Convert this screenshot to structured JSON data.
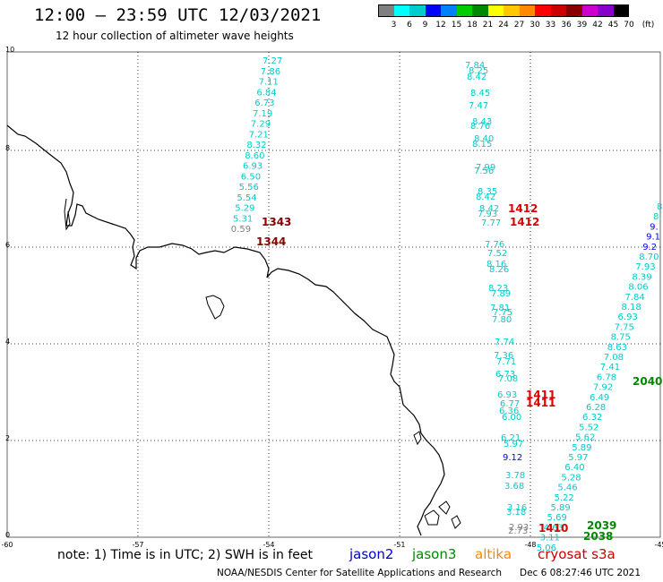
{
  "header": {
    "title": "12:00 — 23:59 UTC 12/03/2021",
    "subtitle": "12 hour collection of altimeter wave heights"
  },
  "colorbar": {
    "colors": [
      "#808080",
      "#00ffff",
      "#00cccc",
      "#0000ff",
      "#007fff",
      "#00cc00",
      "#008800",
      "#ffff00",
      "#ffc800",
      "#ff8800",
      "#ff0000",
      "#cc0000",
      "#880000",
      "#cc00cc",
      "#8800cc",
      "#000000"
    ],
    "ticks": [
      "3",
      "6",
      "9",
      "12",
      "15",
      "18",
      "21",
      "24",
      "27",
      "30",
      "33",
      "36",
      "39",
      "42",
      "45",
      "70",
      "(ft)"
    ]
  },
  "axes": {
    "x_ticks": [
      "-60",
      "-57",
      "-54",
      "-51",
      "-48",
      "-45"
    ],
    "y_ticks": [
      "0",
      "2",
      "4",
      "6",
      "8",
      "10"
    ]
  },
  "swath_labels": {
    "jason2_row": [
      {
        "text": "1343",
        "color": "#880000"
      },
      {
        "text": "1344",
        "color": "#880000"
      }
    ],
    "cryosat_top": [
      {
        "text": "1412",
        "color": "#dd0000"
      },
      {
        "text": "1412",
        "color": "#dd0000"
      }
    ],
    "cryosat_mid": [
      {
        "text": "1411",
        "color": "#dd0000"
      },
      {
        "text": "1411",
        "color": "#dd0000"
      }
    ],
    "cryosat_bottom": [
      {
        "text": "1410",
        "color": "#dd0000"
      }
    ],
    "jason3": [
      {
        "text": "2040",
        "color": "#008800"
      },
      {
        "text": "2039",
        "color": "#008800"
      },
      {
        "text": "2038",
        "color": "#008800"
      }
    ]
  },
  "track_left": [
    {
      "v": "7.27",
      "c": "#00cccc"
    },
    {
      "v": "7.86",
      "c": "#00cccc"
    },
    {
      "v": "7.11",
      "c": "#00cccc"
    },
    {
      "v": "6.84",
      "c": "#00cccc"
    },
    {
      "v": "6.73",
      "c": "#00cccc"
    },
    {
      "v": "7.19",
      "c": "#00cccc"
    },
    {
      "v": "7.29",
      "c": "#00cccc"
    },
    {
      "v": "7.21",
      "c": "#00cccc"
    },
    {
      "v": "8.32",
      "c": "#00cccc"
    },
    {
      "v": "8.60",
      "c": "#00cccc"
    },
    {
      "v": "6.93",
      "c": "#00cccc"
    },
    {
      "v": "6.50",
      "c": "#00cccc"
    },
    {
      "v": "5.56",
      "c": "#00cccc"
    },
    {
      "v": "5.54",
      "c": "#00cccc"
    },
    {
      "v": "5.29",
      "c": "#00cccc"
    },
    {
      "v": "5.31",
      "c": "#00cccc"
    },
    {
      "v": "0.59",
      "c": "#808080"
    }
  ],
  "track_mid_top": [
    {
      "v": "7.84",
      "c": "#00cccc"
    },
    {
      "v": "8.25",
      "c": "#00cccc"
    },
    {
      "v": "8.42",
      "c": "#00cccc"
    },
    {
      "v": "8.45",
      "c": "#00cccc"
    },
    {
      "v": "7.47",
      "c": "#00cccc"
    },
    {
      "v": "8.43",
      "c": "#00cccc"
    },
    {
      "v": "8.76",
      "c": "#00cccc"
    },
    {
      "v": "8.40",
      "c": "#00cccc"
    },
    {
      "v": "8.15",
      "c": "#00cccc"
    },
    {
      "v": "7.99",
      "c": "#00cccc"
    },
    {
      "v": "7.56",
      "c": "#00cccc"
    },
    {
      "v": "8.35",
      "c": "#00cccc"
    },
    {
      "v": "8.42",
      "c": "#00cccc"
    },
    {
      "v": "8.42",
      "c": "#00cccc"
    },
    {
      "v": "7.93",
      "c": "#00cccc"
    },
    {
      "v": "7.77",
      "c": "#00cccc"
    }
  ],
  "track_mid_low": [
    {
      "v": "7.76",
      "c": "#00cccc"
    },
    {
      "v": "7.52",
      "c": "#00cccc"
    },
    {
      "v": "8.16",
      "c": "#00cccc"
    },
    {
      "v": "8.26",
      "c": "#00cccc"
    },
    {
      "v": "8.23",
      "c": "#00cccc"
    },
    {
      "v": "7.89",
      "c": "#00cccc"
    },
    {
      "v": "7.81",
      "c": "#00cccc"
    },
    {
      "v": "7.75",
      "c": "#00cccc"
    },
    {
      "v": "7.80",
      "c": "#00cccc"
    },
    {
      "v": "7.74",
      "c": "#00cccc"
    },
    {
      "v": "7.36",
      "c": "#00cccc"
    },
    {
      "v": "7.71",
      "c": "#00cccc"
    },
    {
      "v": "6.73",
      "c": "#00cccc"
    },
    {
      "v": "7.08",
      "c": "#00cccc"
    },
    {
      "v": "6.93",
      "c": "#00cccc"
    },
    {
      "v": "6.77",
      "c": "#00cccc"
    },
    {
      "v": "6.36",
      "c": "#00cccc"
    },
    {
      "v": "6.00",
      "c": "#00cccc"
    },
    {
      "v": "6.21",
      "c": "#00cccc"
    },
    {
      "v": "5.97",
      "c": "#00cccc"
    },
    {
      "v": "9.12",
      "c": "#0000ff"
    },
    {
      "v": "3.78",
      "c": "#00cccc"
    },
    {
      "v": "3.68",
      "c": "#00cccc"
    },
    {
      "v": "3.16",
      "c": "#00cccc"
    },
    {
      "v": "3.18",
      "c": "#00cccc"
    },
    {
      "v": "2.93",
      "c": "#808080"
    },
    {
      "v": "2.73",
      "c": "#808080"
    }
  ],
  "track_diag": [
    {
      "v": "8.",
      "c": "#00cccc"
    },
    {
      "v": "8.",
      "c": "#00cccc"
    },
    {
      "v": "9.",
      "c": "#0000ff"
    },
    {
      "v": "9.1",
      "c": "#0000ff"
    },
    {
      "v": "9.2",
      "c": "#0000ff"
    },
    {
      "v": "8.70",
      "c": "#00cccc"
    },
    {
      "v": "7.93",
      "c": "#00cccc"
    },
    {
      "v": "8.39",
      "c": "#00cccc"
    },
    {
      "v": "8.06",
      "c": "#00cccc"
    },
    {
      "v": "7.84",
      "c": "#00cccc"
    },
    {
      "v": "8.18",
      "c": "#00cccc"
    },
    {
      "v": "6.93",
      "c": "#00cccc"
    },
    {
      "v": "7.75",
      "c": "#00cccc"
    },
    {
      "v": "8.75",
      "c": "#00cccc"
    },
    {
      "v": "8.63",
      "c": "#00cccc"
    },
    {
      "v": "7.08",
      "c": "#00cccc"
    },
    {
      "v": "7.41",
      "c": "#00cccc"
    },
    {
      "v": "6.78",
      "c": "#00cccc"
    },
    {
      "v": "7.92",
      "c": "#00cccc"
    },
    {
      "v": "6.49",
      "c": "#00cccc"
    },
    {
      "v": "6.28",
      "c": "#00cccc"
    },
    {
      "v": "6.32",
      "c": "#00cccc"
    },
    {
      "v": "5.52",
      "c": "#00cccc"
    },
    {
      "v": "5.62",
      "c": "#00cccc"
    },
    {
      "v": "5.89",
      "c": "#00cccc"
    },
    {
      "v": "5.97",
      "c": "#00cccc"
    },
    {
      "v": "6.40",
      "c": "#00cccc"
    },
    {
      "v": "5.28",
      "c": "#00cccc"
    },
    {
      "v": "5.46",
      "c": "#00cccc"
    },
    {
      "v": "5.22",
      "c": "#00cccc"
    },
    {
      "v": "5.89",
      "c": "#00cccc"
    },
    {
      "v": "5.69",
      "c": "#00cccc"
    },
    {
      "v": "4.63",
      "c": "#00cccc"
    },
    {
      "v": "3.11",
      "c": "#00cccc"
    },
    {
      "v": "5.06",
      "c": "#00cccc"
    }
  ],
  "footer": {
    "note": "note: 1) Time is in UTC; 2) SWH is in feet",
    "legend": [
      {
        "name": "jason2",
        "color": "#0000cc"
      },
      {
        "name": "jason3",
        "color": "#008800"
      },
      {
        "name": "altika",
        "color": "#ff8800"
      },
      {
        "name": "cryosat s3a",
        "color": "#cc0000"
      }
    ],
    "credit": "NOAA/NESDIS Center for Satellite Applications and Research",
    "timestamp": "Dec  6 08:27:46 UTC 2021"
  }
}
